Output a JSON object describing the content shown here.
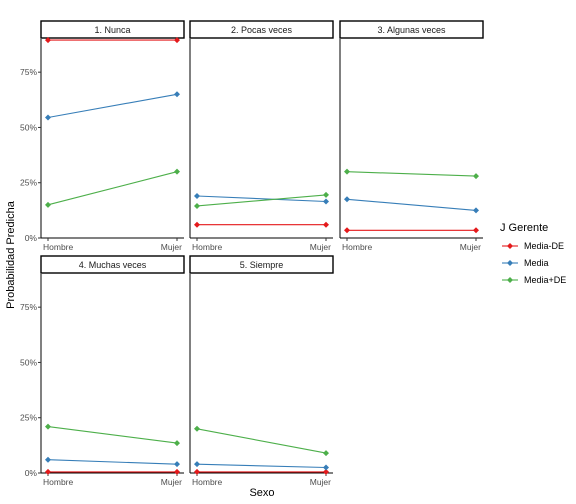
{
  "chart_data": {
    "type": "line",
    "x_axis_title": "Sexo",
    "y_axis_title": "Probabilidad Predicha",
    "categories": [
      "Hombre",
      "Mujer"
    ],
    "y_ticks": [
      0,
      25,
      50,
      75
    ],
    "y_tick_labels": [
      "0%",
      "25%",
      "50%",
      "75%"
    ],
    "ylim": [
      0,
      90
    ],
    "legend": {
      "title": "J Gerente",
      "position": "right",
      "items": [
        {
          "name": "Media-DE",
          "color": "#E41A1C"
        },
        {
          "name": "Media",
          "color": "#377EB8"
        },
        {
          "name": "Media+DE",
          "color": "#4DAF4A"
        }
      ]
    },
    "panels": [
      {
        "strip": "1. Nunca",
        "series": [
          {
            "name": "Media-DE",
            "values": [
              89.5,
              89.5
            ]
          },
          {
            "name": "Media",
            "values": [
              54.5,
              65.0
            ]
          },
          {
            "name": "Media+DE",
            "values": [
              15.0,
              30.0
            ]
          }
        ]
      },
      {
        "strip": "2. Pocas veces",
        "series": [
          {
            "name": "Media-DE",
            "values": [
              6.0,
              6.0
            ]
          },
          {
            "name": "Media",
            "values": [
              19.0,
              16.5
            ]
          },
          {
            "name": "Media+DE",
            "values": [
              14.5,
              19.5
            ]
          }
        ]
      },
      {
        "strip": "3. Algunas veces",
        "series": [
          {
            "name": "Media-DE",
            "values": [
              3.5,
              3.5
            ]
          },
          {
            "name": "Media",
            "values": [
              17.5,
              12.5
            ]
          },
          {
            "name": "Media+DE",
            "values": [
              30.0,
              28.0
            ]
          }
        ]
      },
      {
        "strip": "4. Muchas veces",
        "series": [
          {
            "name": "Media-DE",
            "values": [
              0.5,
              0.5
            ]
          },
          {
            "name": "Media",
            "values": [
              6.0,
              4.0
            ]
          },
          {
            "name": "Media+DE",
            "values": [
              21.0,
              13.5
            ]
          }
        ]
      },
      {
        "strip": "5. Siempre",
        "series": [
          {
            "name": "Media-DE",
            "values": [
              0.5,
              0.5
            ]
          },
          {
            "name": "Media",
            "values": [
              4.0,
              2.5
            ]
          },
          {
            "name": "Media+DE",
            "values": [
              20.0,
              9.0
            ]
          }
        ]
      }
    ]
  }
}
